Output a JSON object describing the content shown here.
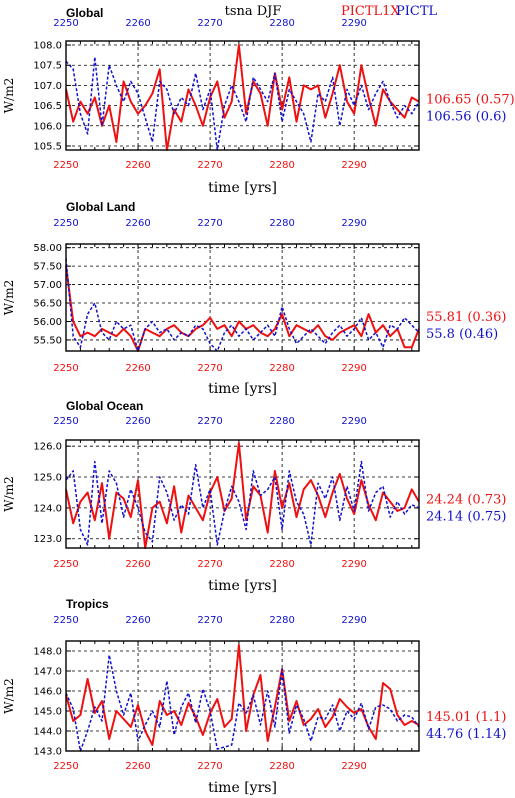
{
  "header": {
    "variable": "tsna DJF",
    "run1": "PICTL1X",
    "run2": "PICTL",
    "run1_color": "#ee1111",
    "run2_color": "#1111cc"
  },
  "chart_data": [
    {
      "type": "line",
      "title": "Global",
      "xlabel": "time [yrs]",
      "ylabel": "W/m2",
      "xlim": [
        2250,
        2299
      ],
      "ylim": [
        105.4,
        108.1
      ],
      "yticks": [
        "105.5",
        "106.0",
        "106.5",
        "107.0",
        "107.5",
        "108.0"
      ],
      "xticks_bottom": [
        "2250",
        "2260",
        "2270",
        "2280",
        "2290"
      ],
      "xticks_top": [
        "2250",
        "2260",
        "2270",
        "2280",
        "2290"
      ],
      "series": [
        {
          "name": "PICTL1X",
          "color": "#ee1111",
          "stat": "106.65 (0.57)",
          "x": [
            2250,
            2251,
            2252,
            2253,
            2254,
            2255,
            2256,
            2257,
            2258,
            2259,
            2260,
            2261,
            2262,
            2263,
            2264,
            2265,
            2266,
            2267,
            2268,
            2269,
            2270,
            2271,
            2272,
            2273,
            2274,
            2275,
            2276,
            2277,
            2278,
            2279,
            2280,
            2281,
            2282,
            2283,
            2284,
            2285,
            2286,
            2287,
            2288,
            2289,
            2290,
            2291,
            2292,
            2293,
            2294,
            2295,
            2296,
            2297,
            2298,
            2299
          ],
          "values": [
            106.9,
            106.1,
            106.6,
            106.3,
            106.7,
            106.0,
            106.5,
            105.6,
            107.1,
            106.6,
            106.3,
            106.5,
            106.8,
            107.4,
            105.4,
            106.4,
            106.1,
            106.9,
            106.5,
            106.0,
            106.7,
            107.1,
            106.2,
            106.6,
            108.0,
            106.3,
            107.1,
            106.8,
            106.0,
            107.3,
            106.4,
            107.2,
            106.1,
            107.0,
            106.9,
            107.0,
            106.2,
            106.8,
            107.5,
            106.6,
            106.3,
            107.5,
            106.7,
            106.0,
            106.9,
            106.6,
            106.4,
            106.2,
            106.7,
            106.6
          ]
        },
        {
          "name": "PICTL",
          "color": "#1111cc",
          "stat": "106.56 (0.6)",
          "x": [
            2250,
            2251,
            2252,
            2253,
            2254,
            2255,
            2256,
            2257,
            2258,
            2259,
            2260,
            2261,
            2262,
            2263,
            2264,
            2265,
            2266,
            2267,
            2268,
            2269,
            2270,
            2271,
            2272,
            2273,
            2274,
            2275,
            2276,
            2277,
            2278,
            2279,
            2280,
            2281,
            2282,
            2283,
            2284,
            2285,
            2286,
            2287,
            2288,
            2289,
            2290,
            2291,
            2292,
            2293,
            2294,
            2295,
            2296,
            2297,
            2298,
            2299
          ],
          "values": [
            107.6,
            107.4,
            106.3,
            105.8,
            107.7,
            106.0,
            107.5,
            107.0,
            106.6,
            107.1,
            106.8,
            106.2,
            105.6,
            107.1,
            106.9,
            106.3,
            106.7,
            106.5,
            107.3,
            106.4,
            106.9,
            105.4,
            106.5,
            107.0,
            106.6,
            106.1,
            107.2,
            106.9,
            106.6,
            107.3,
            106.1,
            106.9,
            106.6,
            106.3,
            105.6,
            106.8,
            106.6,
            107.2,
            106.0,
            106.9,
            106.5,
            107.0,
            106.4,
            106.8,
            107.1,
            106.6,
            106.2,
            106.5,
            106.3,
            106.6
          ]
        }
      ]
    },
    {
      "type": "line",
      "title": "Global Land",
      "xlabel": "time [yrs]",
      "ylabel": "W/m2",
      "xlim": [
        2250,
        2299
      ],
      "ylim": [
        55.2,
        58.1
      ],
      "yticks": [
        "55.50",
        "56.00",
        "56.50",
        "57.00",
        "57.50",
        "58.00"
      ],
      "xticks_bottom": [
        "2250",
        "2260",
        "2270",
        "2280",
        "2290"
      ],
      "xticks_top": [
        "2250",
        "2260",
        "2270",
        "2280",
        "2290"
      ],
      "series": [
        {
          "name": "PICTL1X",
          "color": "#ee1111",
          "stat": "55.81 (0.36)",
          "x": [
            2250,
            2251,
            2252,
            2253,
            2254,
            2255,
            2256,
            2257,
            2258,
            2259,
            2260,
            2261,
            2262,
            2263,
            2264,
            2265,
            2266,
            2267,
            2268,
            2269,
            2270,
            2271,
            2272,
            2273,
            2274,
            2275,
            2276,
            2277,
            2278,
            2279,
            2280,
            2281,
            2282,
            2283,
            2284,
            2285,
            2286,
            2287,
            2288,
            2289,
            2290,
            2291,
            2292,
            2293,
            2294,
            2295,
            2296,
            2297,
            2298,
            2299
          ],
          "values": [
            57.5,
            56.0,
            55.6,
            55.7,
            55.6,
            55.8,
            55.7,
            55.6,
            55.8,
            55.6,
            55.2,
            55.8,
            55.7,
            55.6,
            55.8,
            55.9,
            55.7,
            55.6,
            55.8,
            55.9,
            56.1,
            55.8,
            55.9,
            55.6,
            56.0,
            55.8,
            55.9,
            55.7,
            55.6,
            55.8,
            56.2,
            55.6,
            55.9,
            55.8,
            55.7,
            55.9,
            55.6,
            55.5,
            55.7,
            55.8,
            55.9,
            55.6,
            56.2,
            55.7,
            55.9,
            55.6,
            55.8,
            55.3,
            55.3,
            55.8
          ]
        },
        {
          "name": "PICTL",
          "color": "#1111cc",
          "stat": "55.8 (0.46)",
          "x": [
            2250,
            2251,
            2252,
            2253,
            2254,
            2255,
            2256,
            2257,
            2258,
            2259,
            2260,
            2261,
            2262,
            2263,
            2264,
            2265,
            2266,
            2267,
            2268,
            2269,
            2270,
            2271,
            2272,
            2273,
            2274,
            2275,
            2276,
            2277,
            2278,
            2279,
            2280,
            2281,
            2282,
            2283,
            2284,
            2285,
            2286,
            2287,
            2288,
            2289,
            2290,
            2291,
            2292,
            2293,
            2294,
            2295,
            2296,
            2297,
            2298,
            2299
          ],
          "values": [
            57.7,
            55.6,
            55.3,
            56.2,
            56.5,
            55.7,
            55.5,
            56.0,
            55.8,
            55.9,
            55.2,
            55.8,
            56.0,
            55.7,
            55.8,
            55.5,
            55.7,
            55.6,
            55.9,
            55.8,
            55.4,
            55.2,
            55.7,
            55.9,
            55.6,
            55.8,
            55.5,
            55.7,
            55.9,
            55.6,
            56.4,
            55.8,
            55.4,
            55.6,
            55.8,
            55.6,
            55.4,
            55.7,
            55.9,
            55.6,
            55.8,
            56.1,
            55.5,
            55.7,
            55.3,
            55.9,
            55.8,
            56.1,
            55.9,
            55.7
          ]
        }
      ]
    },
    {
      "type": "line",
      "title": "Global Ocean",
      "xlabel": "time [yrs]",
      "ylabel": "W/m2",
      "xlim": [
        2250,
        2299
      ],
      "ylim": [
        122.7,
        126.2
      ],
      "yticks": [
        "123.0",
        "124.0",
        "125.0",
        "126.0"
      ],
      "xticks_bottom": [
        "2250",
        "2260",
        "2270",
        "2280",
        "2290"
      ],
      "xticks_top": [
        "2250",
        "2260",
        "2270",
        "2280",
        "2290"
      ],
      "series": [
        {
          "name": "PICTL1X",
          "color": "#ee1111",
          "stat": "24.24 (0.73)",
          "x": [
            2250,
            2251,
            2252,
            2253,
            2254,
            2255,
            2256,
            2257,
            2258,
            2259,
            2260,
            2261,
            2262,
            2263,
            2264,
            2265,
            2266,
            2267,
            2268,
            2269,
            2270,
            2271,
            2272,
            2273,
            2274,
            2275,
            2276,
            2277,
            2278,
            2279,
            2280,
            2281,
            2282,
            2283,
            2284,
            2285,
            2286,
            2287,
            2288,
            2289,
            2290,
            2291,
            2292,
            2293,
            2294,
            2295,
            2296,
            2297,
            2298,
            2299
          ],
          "values": [
            124.6,
            123.5,
            124.2,
            124.5,
            123.6,
            124.8,
            123.0,
            124.5,
            124.3,
            123.7,
            124.9,
            122.7,
            124.0,
            124.2,
            123.5,
            124.7,
            123.2,
            124.4,
            124.0,
            123.6,
            124.5,
            125.0,
            123.9,
            124.3,
            126.1,
            123.6,
            124.7,
            124.4,
            123.2,
            125.2,
            124.0,
            124.8,
            123.7,
            124.6,
            124.9,
            124.4,
            123.7,
            124.5,
            125.1,
            124.3,
            123.8,
            124.9,
            124.1,
            123.6,
            124.5,
            124.2,
            123.9,
            124.0,
            124.6,
            124.2
          ]
        },
        {
          "name": "PICTL",
          "color": "#1111cc",
          "stat": "24.14 (0.75)",
          "x": [
            2250,
            2251,
            2252,
            2253,
            2254,
            2255,
            2256,
            2257,
            2258,
            2259,
            2260,
            2261,
            2262,
            2263,
            2264,
            2265,
            2266,
            2267,
            2268,
            2269,
            2270,
            2271,
            2272,
            2273,
            2274,
            2275,
            2276,
            2277,
            2278,
            2279,
            2280,
            2281,
            2282,
            2283,
            2284,
            2285,
            2286,
            2287,
            2288,
            2289,
            2290,
            2291,
            2292,
            2293,
            2294,
            2295,
            2296,
            2297,
            2298,
            2299
          ],
          "values": [
            124.9,
            125.2,
            123.3,
            122.8,
            125.5,
            123.5,
            125.2,
            124.8,
            123.7,
            124.6,
            124.0,
            123.2,
            122.9,
            125.0,
            124.5,
            123.6,
            124.1,
            123.8,
            125.4,
            124.0,
            124.6,
            122.8,
            123.9,
            124.7,
            124.2,
            123.3,
            125.2,
            124.4,
            124.6,
            125.0,
            123.3,
            125.2,
            124.2,
            123.8,
            122.8,
            124.8,
            124.3,
            125.0,
            123.6,
            124.7,
            123.9,
            125.5,
            123.9,
            124.5,
            124.7,
            123.7,
            124.2,
            123.8,
            124.1,
            124.0
          ]
        }
      ]
    },
    {
      "type": "line",
      "title": "Tropics",
      "xlabel": "time [yrs]",
      "ylabel": "W/m2",
      "xlim": [
        2250,
        2299
      ],
      "ylim": [
        143.0,
        148.5
      ],
      "yticks": [
        "143.0",
        "144.0",
        "145.0",
        "146.0",
        "147.0",
        "148.0"
      ],
      "xticks_bottom": [
        "2250",
        "2260",
        "2270",
        "2280",
        "2290"
      ],
      "xticks_top": [
        "2250",
        "2260",
        "2270",
        "2280",
        "2290"
      ],
      "series": [
        {
          "name": "PICTL1X",
          "color": "#ee1111",
          "stat": "145.01 (1.1)",
          "x": [
            2250,
            2251,
            2252,
            2253,
            2254,
            2255,
            2256,
            2257,
            2258,
            2259,
            2260,
            2261,
            2262,
            2263,
            2264,
            2265,
            2266,
            2267,
            2268,
            2269,
            2270,
            2271,
            2272,
            2273,
            2274,
            2275,
            2276,
            2277,
            2278,
            2279,
            2280,
            2281,
            2282,
            2283,
            2284,
            2285,
            2286,
            2287,
            2288,
            2289,
            2290,
            2291,
            2292,
            2293,
            2294,
            2295,
            2296,
            2297,
            2298,
            2299
          ],
          "values": [
            145.8,
            144.5,
            144.8,
            146.6,
            144.9,
            145.5,
            143.6,
            145.0,
            144.6,
            144.2,
            145.3,
            144.0,
            143.3,
            145.5,
            144.8,
            145.0,
            144.3,
            145.4,
            144.7,
            143.8,
            144.9,
            145.6,
            144.2,
            144.6,
            148.3,
            144.0,
            145.8,
            146.8,
            143.5,
            145.2,
            147.1,
            144.5,
            145.5,
            144.3,
            144.6,
            145.1,
            144.2,
            144.7,
            145.6,
            145.2,
            144.9,
            145.1,
            144.2,
            143.6,
            146.4,
            146.1,
            144.8,
            144.3,
            144.5,
            144.3
          ]
        },
        {
          "name": "PICTL",
          "color": "#1111cc",
          "stat": "44.76 (1.14)",
          "x": [
            2250,
            2251,
            2252,
            2253,
            2254,
            2255,
            2256,
            2257,
            2258,
            2259,
            2260,
            2261,
            2262,
            2263,
            2264,
            2265,
            2266,
            2267,
            2268,
            2269,
            2270,
            2271,
            2272,
            2273,
            2274,
            2275,
            2276,
            2277,
            2278,
            2279,
            2280,
            2281,
            2282,
            2283,
            2284,
            2285,
            2286,
            2287,
            2288,
            2289,
            2290,
            2291,
            2292,
            2293,
            2294,
            2295,
            2296,
            2297,
            2298,
            2299
          ],
          "values": [
            145.9,
            145.1,
            143.0,
            144.0,
            145.2,
            144.5,
            147.8,
            146.0,
            144.8,
            145.9,
            143.5,
            144.3,
            145.0,
            144.2,
            146.5,
            143.8,
            145.2,
            145.9,
            144.4,
            146.1,
            145.0,
            143.1,
            143.2,
            143.3,
            145.4,
            144.9,
            145.8,
            144.3,
            146.0,
            144.2,
            147.1,
            143.9,
            145.3,
            144.6,
            143.5,
            144.7,
            144.6,
            145.3,
            144.0,
            145.0,
            144.6,
            145.4,
            144.1,
            145.2,
            145.3,
            145.1,
            144.5,
            144.8,
            144.7,
            144.2
          ]
        }
      ]
    }
  ]
}
